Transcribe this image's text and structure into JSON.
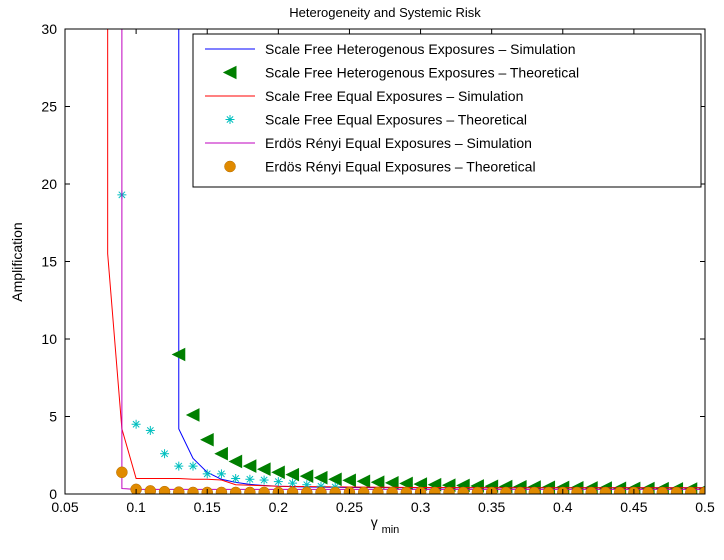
{
  "chart_data": {
    "type": "line",
    "title": "Heterogeneity and Systemic Risk",
    "xlabel": "γ",
    "xlabel_sub": "min",
    "ylabel": "Amplification",
    "xlim": [
      0.05,
      0.5
    ],
    "ylim": [
      0,
      30
    ],
    "x_ticks": [
      0.05,
      0.1,
      0.15,
      0.2,
      0.25,
      0.3,
      0.35,
      0.4,
      0.45,
      0.5
    ],
    "x_tick_labels": [
      "0.05",
      "0.1",
      "0.15",
      "0.2",
      "0.25",
      "0.3",
      "0.35",
      "0.4",
      "0.45",
      "0.5"
    ],
    "y_ticks": [
      0,
      5,
      10,
      15,
      20,
      25,
      30
    ],
    "y_tick_labels": [
      "0",
      "5",
      "10",
      "15",
      "20",
      "25",
      "30"
    ],
    "grid": false,
    "legend_position": "top-right",
    "series": [
      {
        "name": "Scale Free Heterogenous Exposures – Simulation",
        "style": "line",
        "color": "#0000ff",
        "x": [
          0.13,
          0.13,
          0.14,
          0.15,
          0.16,
          0.17,
          0.18,
          0.19,
          0.2,
          0.22,
          0.25,
          0.3,
          0.35,
          0.4,
          0.45,
          0.5
        ],
        "y": [
          30,
          4.2,
          2.3,
          1.4,
          0.95,
          0.75,
          0.62,
          0.55,
          0.5,
          0.45,
          0.42,
          0.4,
          0.4,
          0.4,
          0.4,
          0.4
        ]
      },
      {
        "name": "Scale Free Heterogenous Exposures – Theoretical",
        "style": "marker",
        "marker": "triangle-left",
        "color": "#007f00",
        "x": [
          0.13,
          0.14,
          0.15,
          0.16,
          0.17,
          0.18,
          0.19,
          0.2,
          0.21,
          0.22,
          0.23,
          0.24,
          0.25,
          0.26,
          0.27,
          0.28,
          0.29,
          0.3,
          0.31,
          0.32,
          0.33,
          0.34,
          0.35,
          0.36,
          0.37,
          0.38,
          0.39,
          0.4,
          0.41,
          0.42,
          0.43,
          0.44,
          0.45,
          0.46,
          0.47,
          0.48,
          0.49,
          0.5
        ],
        "y": [
          9.0,
          5.1,
          3.5,
          2.6,
          2.1,
          1.8,
          1.6,
          1.4,
          1.25,
          1.15,
          1.05,
          0.95,
          0.88,
          0.82,
          0.76,
          0.72,
          0.68,
          0.64,
          0.6,
          0.57,
          0.55,
          0.52,
          0.5,
          0.48,
          0.46,
          0.45,
          0.43,
          0.42,
          0.4,
          0.39,
          0.38,
          0.37,
          0.36,
          0.35,
          0.34,
          0.33,
          0.32,
          0.31
        ]
      },
      {
        "name": "Scale Free Equal Exposures – Simulation",
        "style": "line",
        "color": "#ff0000",
        "x": [
          0.08,
          0.08,
          0.09,
          0.1,
          0.12,
          0.13,
          0.14,
          0.15,
          0.16,
          0.17,
          0.2,
          0.25,
          0.3,
          0.35,
          0.4,
          0.45,
          0.5
        ],
        "y": [
          30,
          15.5,
          4.2,
          1.0,
          1.0,
          1.0,
          0.95,
          0.95,
          0.9,
          0.6,
          0.5,
          0.45,
          0.42,
          0.4,
          0.4,
          0.4,
          0.4
        ]
      },
      {
        "name": "Scale Free Equal Exposures – Theoretical",
        "style": "marker",
        "marker": "asterisk",
        "color": "#00bfbf",
        "x": [
          0.09,
          0.1,
          0.11,
          0.12,
          0.13,
          0.14,
          0.15,
          0.16,
          0.17,
          0.18,
          0.19,
          0.2,
          0.21,
          0.22,
          0.23,
          0.24
        ],
        "y": [
          19.3,
          4.5,
          4.1,
          2.6,
          1.8,
          1.8,
          1.3,
          1.3,
          1.0,
          0.95,
          0.9,
          0.8,
          0.7,
          0.6,
          0.5,
          0.45
        ]
      },
      {
        "name": "Erdös Rényi Equal Exposures – Simulation",
        "style": "line",
        "color": "#bf00bf",
        "x": [
          0.09,
          0.09,
          0.1,
          0.2,
          0.3,
          0.4,
          0.5
        ],
        "y": [
          30,
          0.35,
          0.3,
          0.3,
          0.3,
          0.3,
          0.3
        ]
      },
      {
        "name": "Erdös Rényi Equal Exposures – Theoretical",
        "style": "marker",
        "marker": "circle",
        "color": "#e08a00",
        "x": [
          0.09,
          0.1,
          0.11,
          0.12,
          0.13,
          0.14,
          0.15,
          0.16,
          0.17,
          0.18,
          0.19,
          0.2,
          0.21,
          0.22,
          0.23,
          0.24,
          0.25,
          0.26,
          0.27,
          0.28,
          0.29,
          0.3,
          0.31,
          0.32,
          0.33,
          0.34,
          0.35,
          0.36,
          0.37,
          0.38,
          0.39,
          0.4,
          0.41,
          0.42,
          0.43,
          0.44,
          0.45,
          0.46,
          0.47,
          0.48,
          0.49,
          0.5
        ],
        "y": [
          1.4,
          0.3,
          0.2,
          0.15,
          0.12,
          0.1,
          0.1,
          0.1,
          0.1,
          0.1,
          0.1,
          0.1,
          0.1,
          0.1,
          0.1,
          0.1,
          0.1,
          0.1,
          0.1,
          0.1,
          0.1,
          0.1,
          0.1,
          0.1,
          0.1,
          0.1,
          0.1,
          0.1,
          0.1,
          0.1,
          0.1,
          0.1,
          0.1,
          0.1,
          0.1,
          0.1,
          0.1,
          0.1,
          0.1,
          0.1,
          0.1,
          0.1
        ]
      }
    ]
  }
}
